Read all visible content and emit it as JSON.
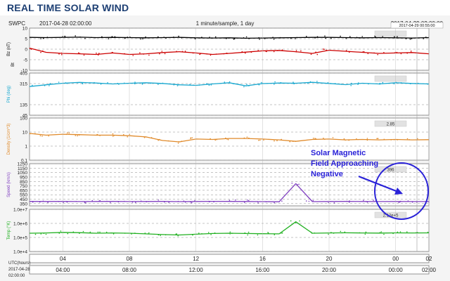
{
  "page": {
    "title": "REAL TIME SOLAR WIND"
  },
  "chart_data": {
    "type": "line",
    "source": "SWPC",
    "start_label": "2017-04-28 02:00:00",
    "end_label": "2017-04-29 02:00:00",
    "end_tooltip": "2017-04-29 00:55:00",
    "subtitle": "1 minute/sample, 1 day",
    "xlabel": "UTC(hours)",
    "x_date_label": "2017-04-28",
    "x_time_label": "02:00:00",
    "x_ticks_top": [
      "04",
      "08",
      "12",
      "16",
      "20",
      "00",
      "02"
    ],
    "x_ticks_bottom": [
      "04:00",
      "08:00",
      "12:00",
      "16:00",
      "20:00",
      "00:00",
      "02:00"
    ],
    "panels": [
      {
        "name": "bz",
        "ylabel": "Bz (nT)",
        "ylabel_right": "Bt",
        "yticks": [
          "10",
          "5",
          "0",
          "-5",
          "-10"
        ],
        "ylim": [
          -10,
          10
        ],
        "latest": "",
        "series": [
          {
            "name": "Bt",
            "color": "#000000",
            "x": [
              2,
              3,
              4,
              5,
              6,
              7,
              8,
              9,
              10,
              11,
              12,
              13,
              14,
              15,
              16,
              17,
              18,
              19,
              20,
              21,
              22,
              23,
              24,
              25,
              26
            ],
            "y": [
              5.6,
              5.5,
              5.6,
              5.7,
              5.5,
              5.6,
              5.5,
              5.4,
              5.5,
              5.6,
              5.4,
              5.3,
              5.4,
              5.2,
              5.3,
              5.4,
              5.5,
              5.6,
              5.6,
              5.5,
              5.4,
              5.5,
              5.4,
              5.3,
              5.5
            ]
          },
          {
            "name": "Bz",
            "color": "#cc0000",
            "x": [
              2,
              3,
              4,
              5,
              6,
              7,
              8,
              9,
              10,
              11,
              12,
              13,
              14,
              15,
              16,
              17,
              18,
              19,
              20,
              21,
              22,
              23,
              24,
              25,
              26
            ],
            "y": [
              0.5,
              -1.5,
              -2.0,
              -2.2,
              -2.5,
              -1.8,
              -2.5,
              -2.2,
              -1.6,
              -1.2,
              -1.8,
              -2.5,
              -2.0,
              -1.4,
              -0.8,
              -0.6,
              -1.2,
              -2.0,
              -0.5,
              -1.0,
              -1.5,
              -2.0,
              -1.8,
              -1.6,
              -2.2
            ]
          }
        ]
      },
      {
        "name": "phi",
        "ylabel": "Phi (deg)",
        "yticks": [
          "405",
          "315",
          "135",
          "45"
        ],
        "ylim": [
          45,
          405
        ],
        "latest": "",
        "series": [
          {
            "name": "Phi",
            "color": "#18a8d0",
            "x": [
              2,
              3,
              4,
              5,
              6,
              7,
              8,
              9,
              10,
              11,
              12,
              13,
              14,
              15,
              16,
              17,
              18,
              19,
              20,
              21,
              22,
              23,
              24,
              25,
              26
            ],
            "y": [
              290,
              305,
              318,
              325,
              320,
              312,
              318,
              322,
              316,
              305,
              300,
              312,
              322,
              296,
              315,
              320,
              318,
              326,
              316,
              306,
              318,
              312,
              322,
              316,
              312
            ]
          }
        ]
      },
      {
        "name": "density",
        "ylabel": "Density (1/cm^3)",
        "yticks": [
          "100",
          "10",
          "1",
          "0.1"
        ],
        "ylim": [
          0.1,
          100
        ],
        "log": true,
        "latest": "2.85",
        "series": [
          {
            "name": "Density",
            "color": "#e08a2a",
            "x": [
              2,
              3,
              4,
              5,
              6,
              7,
              8,
              9,
              10,
              11,
              12,
              13,
              14,
              15,
              16,
              17,
              18,
              19,
              20,
              21,
              22,
              23,
              24,
              25,
              26
            ],
            "y": [
              8,
              6,
              7,
              6.5,
              6,
              6,
              5.5,
              4.5,
              2.5,
              2,
              3.2,
              3,
              3.5,
              3.5,
              3.2,
              2.8,
              2.2,
              3,
              3.2,
              2.8,
              3,
              2.8,
              3,
              2.8,
              2.9
            ]
          }
        ]
      },
      {
        "name": "speed",
        "ylabel": "Speed (km/s)",
        "yticks": [
          "1250",
          "1150",
          "1050",
          "950",
          "850",
          "750",
          "650",
          "550",
          "450",
          "350"
        ],
        "ylim": [
          300,
          1250
        ],
        "latest": "396",
        "series": [
          {
            "name": "Speed",
            "color": "#8040c0",
            "x": [
              2,
              3,
              4,
              5,
              6,
              7,
              8,
              9,
              10,
              11,
              12,
              13,
              14,
              15,
              16,
              17,
              18,
              19,
              20,
              21,
              22,
              23,
              24,
              25,
              26
            ],
            "y": [
              400,
              398,
              400,
              396,
              398,
              400,
              396,
              398,
              400,
              395,
              398,
              402,
              400,
              398,
              395,
              392,
              800,
              395,
              398,
              400,
              398,
              396,
              398,
              396,
              396
            ]
          }
        ]
      },
      {
        "name": "temp",
        "ylabel": "Temp (°K)",
        "yticks": [
          "1.0e+7",
          "1.0e+6",
          "1.0e+5",
          "1.0e+4"
        ],
        "ylim": [
          10000,
          10000000
        ],
        "log": true,
        "latest": "2.12e+5",
        "series": [
          {
            "name": "Temp",
            "color": "#20b020",
            "x": [
              2,
              3,
              4,
              5,
              6,
              7,
              8,
              9,
              10,
              11,
              12,
              13,
              14,
              15,
              16,
              17,
              18,
              19,
              20,
              21,
              22,
              23,
              24,
              25,
              26
            ],
            "y": [
              200000,
              210000,
              230000,
              220000,
              200000,
              210000,
              200000,
              180000,
              160000,
              150000,
              170000,
              190000,
              200000,
              190000,
              185000,
              180000,
              1300000,
              200000,
              210000,
              215000,
              210000,
              205000,
              212000,
              208000,
              212000
            ]
          }
        ]
      }
    ]
  },
  "annotation": {
    "line1": "Solar Magnetic",
    "line2": "Field Approaching",
    "line3": "Negative",
    "color": "#2a22d8"
  }
}
